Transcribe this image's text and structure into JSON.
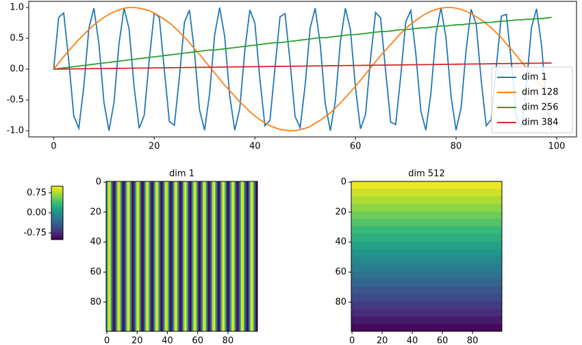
{
  "chart_data": [
    {
      "type": "line",
      "x": [
        0,
        1,
        2,
        3,
        4,
        5,
        6,
        7,
        8,
        9,
        10,
        11,
        12,
        13,
        14,
        15,
        16,
        17,
        18,
        19,
        20,
        21,
        22,
        23,
        24,
        25,
        26,
        27,
        28,
        29,
        30,
        31,
        32,
        33,
        34,
        35,
        36,
        37,
        38,
        39,
        40,
        41,
        42,
        43,
        44,
        45,
        46,
        47,
        48,
        49,
        50,
        51,
        52,
        53,
        54,
        55,
        56,
        57,
        58,
        59,
        60,
        61,
        62,
        63,
        64,
        65,
        66,
        67,
        68,
        69,
        70,
        71,
        72,
        73,
        74,
        75,
        76,
        77,
        78,
        79,
        80,
        81,
        82,
        83,
        84,
        85,
        86,
        87,
        88,
        89,
        90,
        91,
        92,
        93,
        94,
        95,
        96,
        97,
        98,
        99
      ],
      "series": [
        {
          "name": "dim 1",
          "color": "#1f77b4",
          "values": [
            0,
            0.84,
            0.91,
            0.14,
            -0.76,
            -0.96,
            -0.28,
            0.66,
            0.99,
            0.41,
            -0.54,
            -1.0,
            -0.54,
            0.42,
            0.99,
            0.65,
            -0.29,
            -0.96,
            -0.75,
            0.15,
            0.91,
            0.84,
            -0.01,
            -0.85,
            -0.91,
            -0.13,
            0.76,
            0.96,
            0.27,
            -0.66,
            -0.99,
            -0.4,
            0.55,
            1.0,
            0.53,
            -0.43,
            -0.99,
            -0.64,
            0.3,
            0.96,
            0.75,
            -0.16,
            -0.92,
            -0.83,
            0.02,
            0.85,
            0.9,
            0.12,
            -0.77,
            -0.95,
            -0.26,
            0.67,
            0.99,
            0.4,
            -0.56,
            -1.0,
            -0.52,
            0.44,
            0.99,
            0.64,
            -0.3,
            -0.97,
            -0.74,
            0.17,
            0.92,
            0.83,
            -0.03,
            -0.86,
            -0.9,
            -0.11,
            0.77,
            0.95,
            0.25,
            -0.68,
            -0.99,
            -0.39,
            0.57,
            1.0,
            0.51,
            -0.44,
            -0.99,
            -0.63,
            0.31,
            0.97,
            0.73,
            -0.18,
            -0.92,
            -0.82,
            0.04,
            0.86,
            0.89,
            0.11,
            -0.78,
            -0.95,
            -0.25,
            0.68,
            0.98,
            0.38,
            -0.57,
            -1.0
          ]
        },
        {
          "name": "dim 128",
          "color": "#ff7f0e",
          "values": [
            0,
            0.1,
            0.2,
            0.3,
            0.39,
            0.48,
            0.56,
            0.64,
            0.72,
            0.78,
            0.84,
            0.89,
            0.93,
            0.96,
            0.99,
            1.0,
            1.0,
            0.99,
            0.97,
            0.95,
            0.91,
            0.86,
            0.81,
            0.75,
            0.68,
            0.6,
            0.52,
            0.43,
            0.33,
            0.24,
            0.14,
            0.04,
            -0.06,
            -0.16,
            -0.26,
            -0.35,
            -0.44,
            -0.53,
            -0.61,
            -0.69,
            -0.76,
            -0.82,
            -0.87,
            -0.92,
            -0.95,
            -0.98,
            -0.99,
            -1.0,
            -1.0,
            -0.98,
            -0.96,
            -0.93,
            -0.88,
            -0.83,
            -0.77,
            -0.71,
            -0.63,
            -0.55,
            -0.46,
            -0.37,
            -0.28,
            -0.18,
            -0.08,
            0.02,
            0.12,
            0.22,
            0.31,
            0.4,
            0.49,
            0.58,
            0.66,
            0.73,
            0.79,
            0.85,
            0.9,
            0.94,
            0.97,
            0.99,
            1.0,
            1.0,
            0.99,
            0.97,
            0.94,
            0.9,
            0.85,
            0.8,
            0.74,
            0.67,
            0.59,
            0.51,
            0.41,
            0.32,
            0.22,
            0.12,
            0.02,
            -0.08,
            -0.17,
            -0.27,
            -0.37,
            -0.46
          ]
        },
        {
          "name": "dim 256",
          "color": "#2ca02c",
          "values": [
            0,
            0.01,
            0.02,
            0.03,
            0.04,
            0.05,
            0.06,
            0.07,
            0.08,
            0.09,
            0.1,
            0.11,
            0.12,
            0.13,
            0.14,
            0.15,
            0.16,
            0.17,
            0.18,
            0.19,
            0.2,
            0.21,
            0.22,
            0.23,
            0.24,
            0.25,
            0.26,
            0.27,
            0.28,
            0.29,
            0.3,
            0.31,
            0.31,
            0.32,
            0.33,
            0.34,
            0.35,
            0.36,
            0.37,
            0.38,
            0.39,
            0.4,
            0.41,
            0.42,
            0.43,
            0.43,
            0.44,
            0.45,
            0.46,
            0.47,
            0.48,
            0.49,
            0.5,
            0.51,
            0.51,
            0.52,
            0.53,
            0.54,
            0.55,
            0.56,
            0.56,
            0.57,
            0.58,
            0.59,
            0.6,
            0.61,
            0.61,
            0.62,
            0.63,
            0.64,
            0.64,
            0.65,
            0.66,
            0.67,
            0.67,
            0.68,
            0.69,
            0.7,
            0.7,
            0.71,
            0.72,
            0.72,
            0.73,
            0.74,
            0.74,
            0.75,
            0.76,
            0.76,
            0.77,
            0.78,
            0.78,
            0.79,
            0.8,
            0.8,
            0.81,
            0.81,
            0.82,
            0.82,
            0.83,
            0.84
          ]
        },
        {
          "name": "dim 384",
          "color": "#d62728",
          "values": [
            0,
            0.001,
            0.002,
            0.003,
            0.004,
            0.005,
            0.006,
            0.007,
            0.008,
            0.009,
            0.01,
            0.011,
            0.012,
            0.013,
            0.014,
            0.015,
            0.016,
            0.017,
            0.018,
            0.019,
            0.02,
            0.021,
            0.022,
            0.023,
            0.024,
            0.025,
            0.026,
            0.027,
            0.028,
            0.029,
            0.03,
            0.031,
            0.032,
            0.033,
            0.034,
            0.035,
            0.036,
            0.037,
            0.038,
            0.039,
            0.04,
            0.041,
            0.042,
            0.043,
            0.044,
            0.045,
            0.046,
            0.047,
            0.048,
            0.049,
            0.05,
            0.051,
            0.052,
            0.053,
            0.054,
            0.055,
            0.056,
            0.057,
            0.058,
            0.059,
            0.06,
            0.061,
            0.062,
            0.063,
            0.064,
            0.065,
            0.066,
            0.067,
            0.068,
            0.069,
            0.07,
            0.071,
            0.072,
            0.073,
            0.074,
            0.075,
            0.076,
            0.077,
            0.078,
            0.079,
            0.08,
            0.081,
            0.082,
            0.083,
            0.084,
            0.085,
            0.086,
            0.087,
            0.088,
            0.089,
            0.09,
            0.091,
            0.092,
            0.093,
            0.094,
            0.095,
            0.096,
            0.097,
            0.098,
            0.099
          ]
        }
      ],
      "xlim": [
        -4.95,
        103.95
      ],
      "ylim": [
        -1.1,
        1.1
      ],
      "xticks": [
        0,
        20,
        40,
        60,
        80,
        100
      ],
      "yticks": [
        {
          "value": -1,
          "label": "-1.0"
        },
        -0.5,
        {
          "value": 0,
          "label": "0.0"
        },
        0.5,
        {
          "value": 1,
          "label": "1.0"
        }
      ],
      "grid": false,
      "legend": "lower right"
    },
    {
      "type": "colorbar",
      "clim": [
        -1,
        1
      ],
      "colormap": [
        "#440154",
        "#482878",
        "#3e4989",
        "#31688e",
        "#26828e",
        "#1f9e89",
        "#35b779",
        "#6ece58",
        "#b5de2b",
        "#fde725"
      ],
      "yticks": [
        -0.75,
        {
          "value": 0,
          "label": "0.00"
        },
        0.75
      ]
    },
    {
      "type": "heatmap",
      "title": "dim 1",
      "orientation": "columns",
      "x": [
        0,
        1,
        2,
        3,
        4,
        5,
        6,
        7,
        8,
        9,
        10,
        11,
        12,
        13,
        14,
        15,
        16,
        17,
        18,
        19,
        20,
        21,
        22,
        23,
        24,
        25,
        26,
        27,
        28,
        29,
        30,
        31,
        32,
        33,
        34,
        35,
        36,
        37,
        38,
        39,
        40,
        41,
        42,
        43,
        44,
        45,
        46,
        47,
        48,
        49,
        50,
        51,
        52,
        53,
        54,
        55,
        56,
        57,
        58,
        59,
        60,
        61,
        62,
        63,
        64,
        65,
        66,
        67,
        68,
        69,
        70,
        71,
        72,
        73,
        74,
        75,
        76,
        77,
        78,
        79,
        80,
        81,
        82,
        83,
        84,
        85,
        86,
        87,
        88,
        89,
        90,
        91,
        92,
        93,
        94,
        95,
        96,
        97,
        98,
        99
      ],
      "values": [
        0,
        0.84,
        0.91,
        0.14,
        -0.76,
        -0.96,
        -0.28,
        0.66,
        0.99,
        0.41,
        -0.54,
        -1.0,
        -0.54,
        0.42,
        0.99,
        0.65,
        -0.29,
        -0.96,
        -0.75,
        0.15,
        0.91,
        0.84,
        -0.01,
        -0.85,
        -0.91,
        -0.13,
        0.76,
        0.96,
        0.27,
        -0.66,
        -0.99,
        -0.4,
        0.55,
        1.0,
        0.53,
        -0.43,
        -0.99,
        -0.64,
        0.3,
        0.96,
        0.75,
        -0.16,
        -0.92,
        -0.83,
        0.02,
        0.85,
        0.9,
        0.12,
        -0.77,
        -0.95,
        -0.26,
        0.67,
        0.99,
        0.4,
        -0.56,
        -1.0,
        -0.52,
        0.44,
        0.99,
        0.64,
        -0.3,
        -0.97,
        -0.74,
        0.17,
        0.92,
        0.83,
        -0.03,
        -0.86,
        -0.9,
        -0.11,
        0.77,
        0.95,
        0.25,
        -0.68,
        -0.99,
        -0.39,
        0.57,
        1.0,
        0.51,
        -0.44,
        -0.99,
        -0.63,
        0.31,
        0.97,
        0.73,
        -0.18,
        -0.92,
        -0.82,
        0.04,
        0.86,
        0.89,
        0.11,
        -0.78,
        -0.95,
        -0.25,
        0.68,
        0.98,
        0.38,
        -0.57,
        -1.0
      ],
      "xlim": [
        -0.5,
        99.5
      ],
      "ylim": [
        99.5,
        -0.5
      ],
      "xticks": [
        0,
        20,
        40,
        60,
        80
      ],
      "yticks": [
        0,
        20,
        40,
        60,
        80
      ]
    },
    {
      "type": "heatmap",
      "title": "dim 512",
      "orientation": "rows",
      "y": [
        0,
        5,
        10,
        15,
        20,
        25,
        30,
        35,
        40,
        45,
        50,
        55,
        60,
        65,
        70,
        75,
        80,
        85,
        90,
        95
      ],
      "values": [
        0.95,
        0.85,
        0.75,
        0.65,
        0.55,
        0.45,
        0.35,
        0.25,
        0.15,
        0.05,
        -0.05,
        -0.15,
        -0.25,
        -0.35,
        -0.45,
        -0.55,
        -0.65,
        -0.75,
        -0.85,
        -0.95
      ],
      "xlim": [
        -0.5,
        99.5
      ],
      "ylim": [
        99.5,
        -0.5
      ],
      "xticks": [
        0,
        20,
        40,
        60,
        80
      ],
      "yticks": [
        0,
        20,
        40,
        60,
        80
      ]
    }
  ]
}
